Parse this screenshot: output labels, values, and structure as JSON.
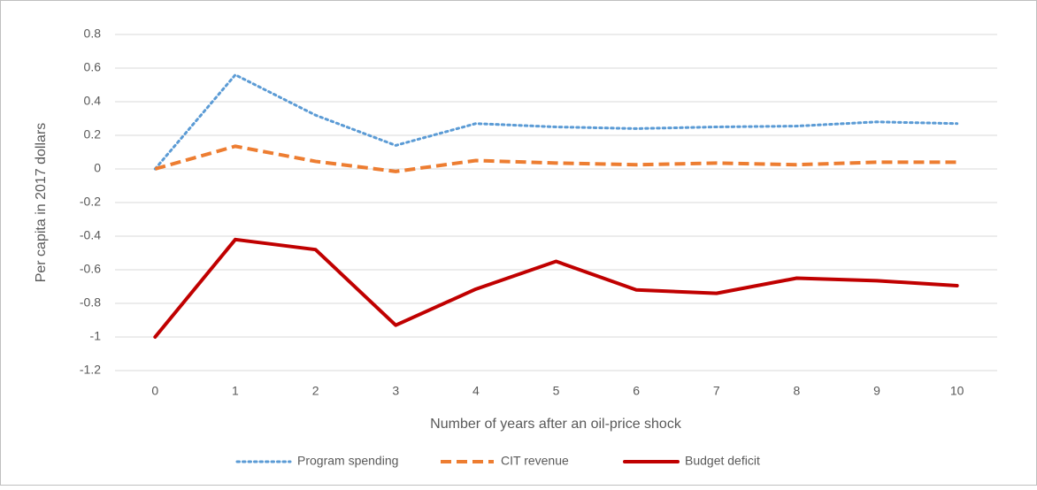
{
  "chart_data": {
    "type": "line",
    "x_label": "Number of years after an oil-price shock",
    "y_label": "Per capita in 2017 dollars",
    "categories": [
      "0",
      "1",
      "2",
      "3",
      "4",
      "5",
      "6",
      "7",
      "8",
      "9",
      "10"
    ],
    "series": [
      {
        "name": "Program spending",
        "color": "#5b9bd5",
        "style": "dotted",
        "values": [
          0,
          0.56,
          0.32,
          0.14,
          0.27,
          0.25,
          0.24,
          0.25,
          0.255,
          0.28,
          0.27
        ]
      },
      {
        "name": "CIT revenue",
        "color": "#ed7d31",
        "style": "dashed",
        "values": [
          0,
          0.135,
          0.045,
          -0.015,
          0.05,
          0.035,
          0.025,
          0.035,
          0.025,
          0.04,
          0.04
        ]
      },
      {
        "name": "Budget deficit",
        "color": "#c00000",
        "style": "solid",
        "values": [
          -1.0,
          -0.42,
          -0.48,
          -0.93,
          -0.715,
          -0.55,
          -0.72,
          -0.74,
          -0.65,
          -0.665,
          -0.695
        ]
      }
    ],
    "ylim": [
      -1.2,
      0.8
    ],
    "yticks": [
      -1.2,
      -1,
      -0.8,
      -0.6,
      -0.4,
      -0.2,
      0,
      0.2,
      0.4,
      0.6,
      0.8
    ],
    "grid": true,
    "legend": "bottom"
  }
}
